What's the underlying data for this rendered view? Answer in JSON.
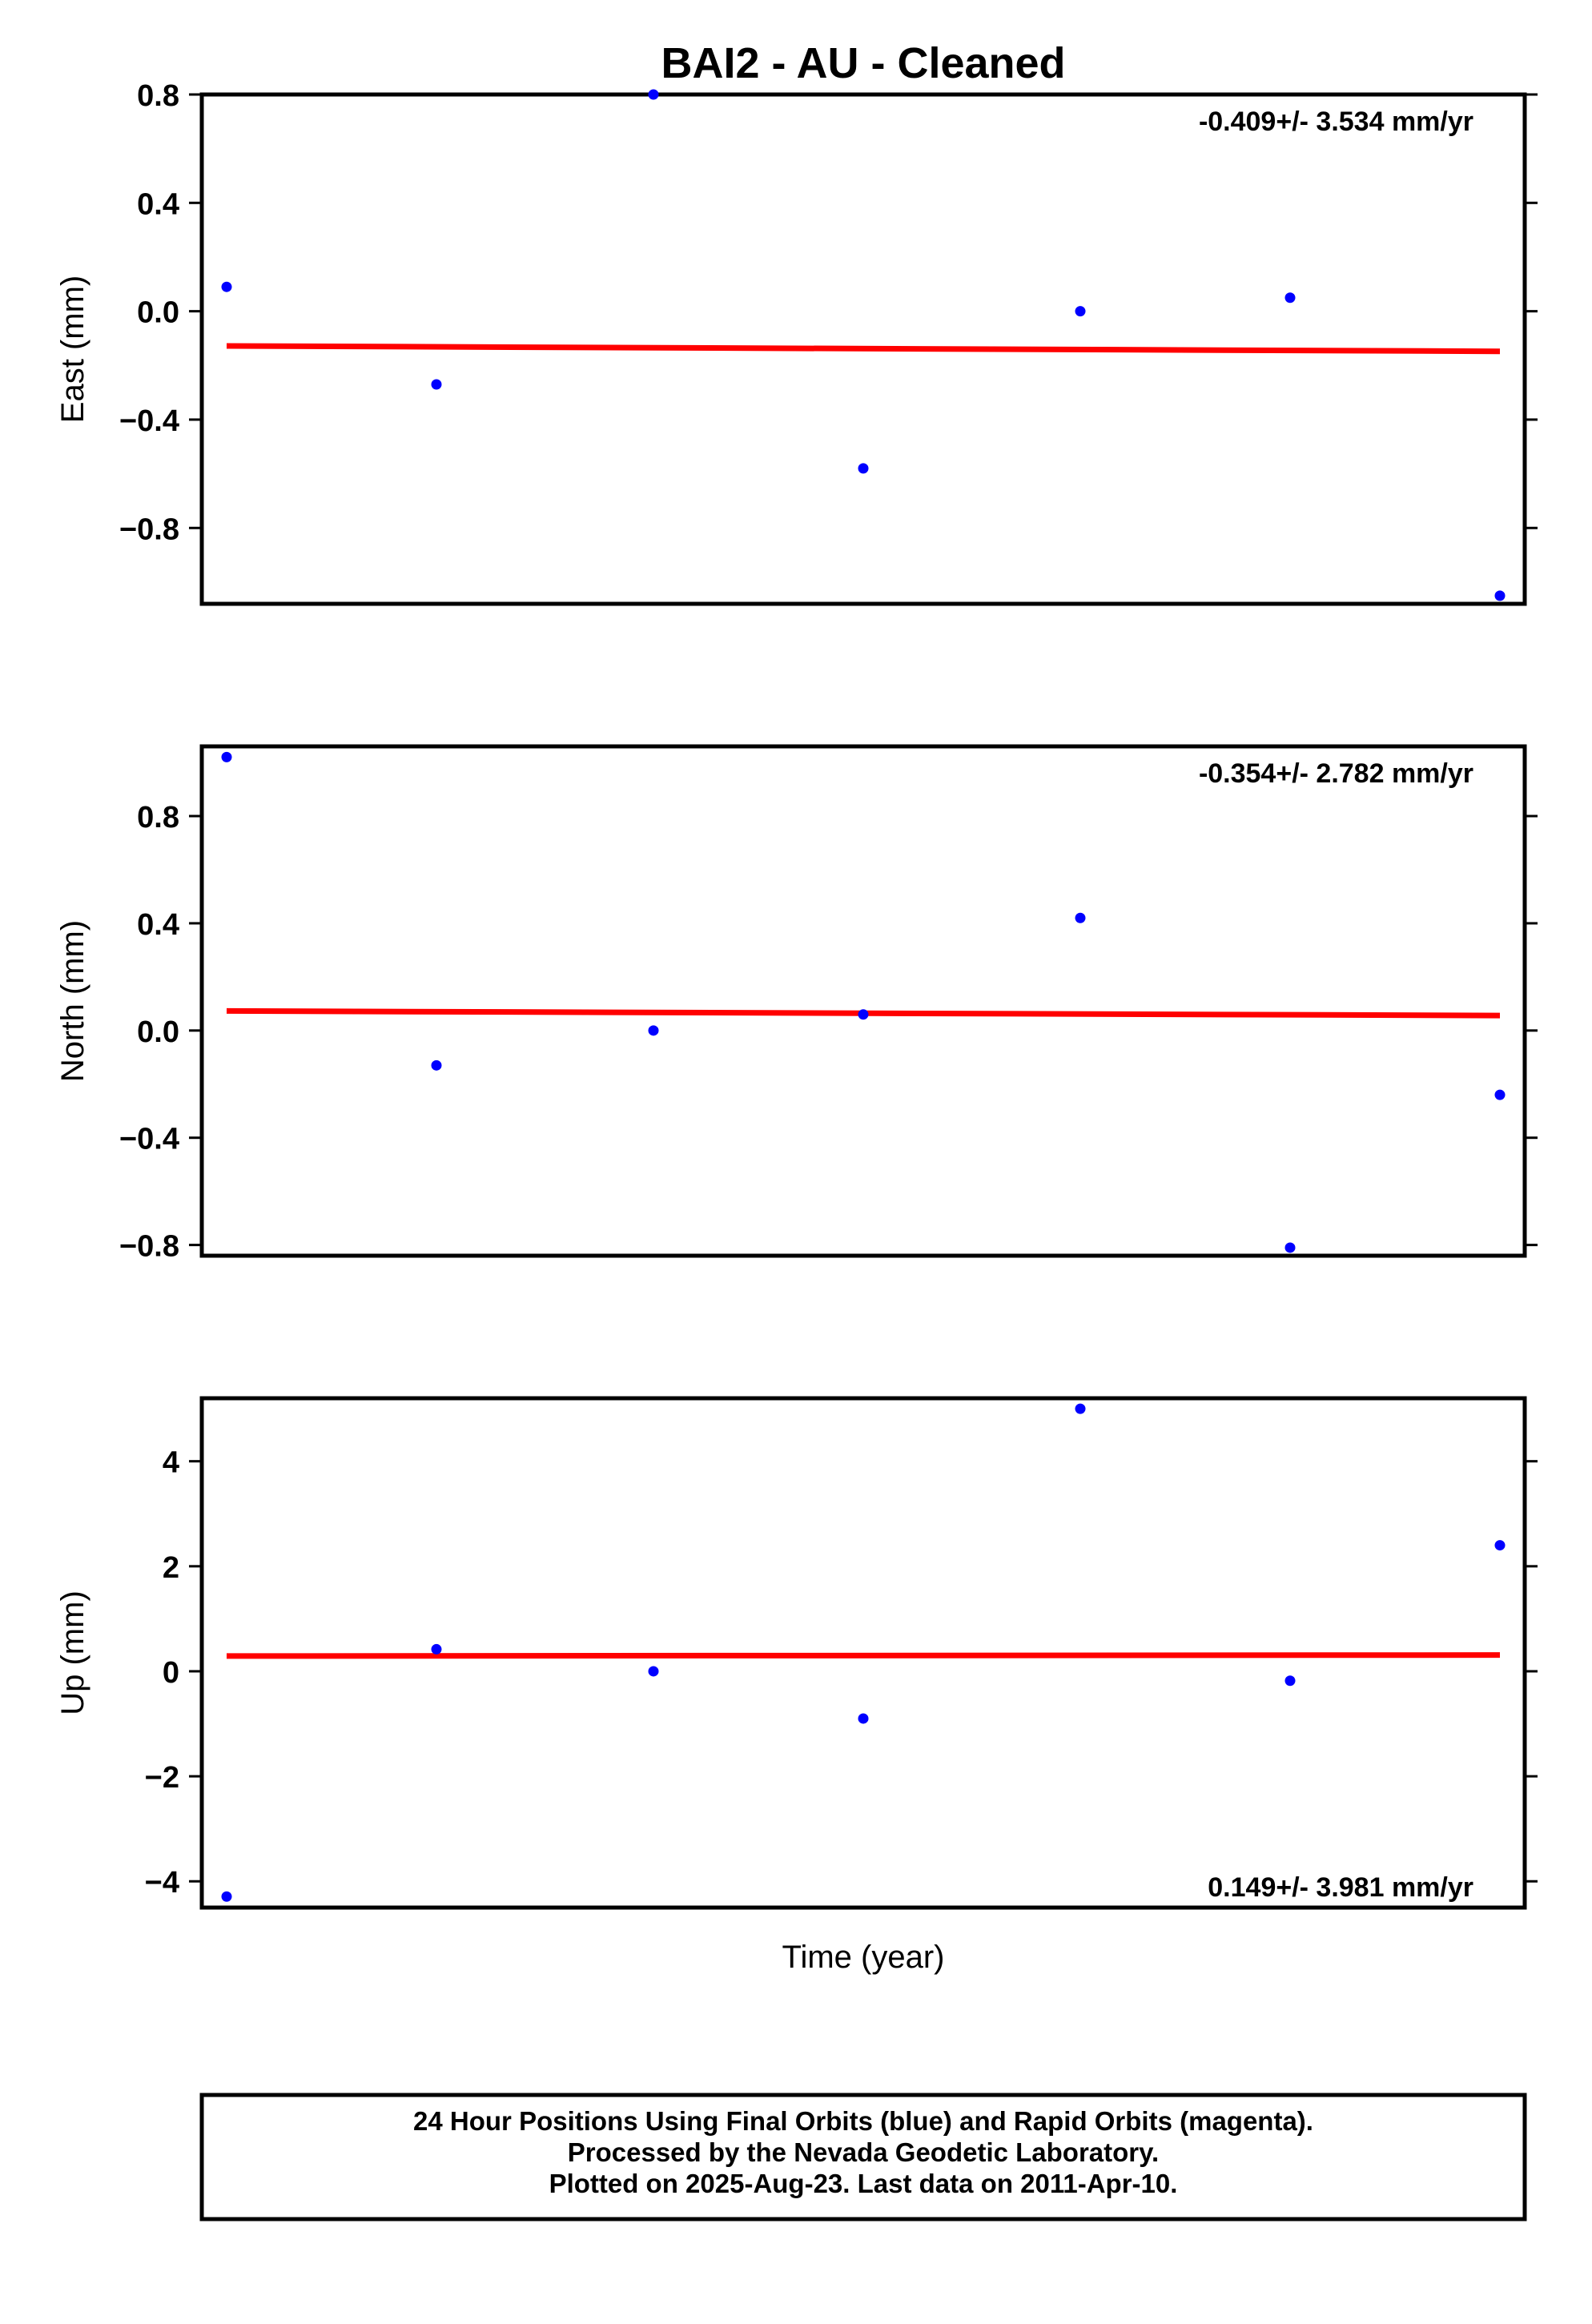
{
  "title": "BAI2  - AU - Cleaned",
  "xlabel": "Time (year)",
  "footer": [
    "24 Hour Positions Using Final Orbits (blue) and Rapid Orbits (magenta).",
    "Processed by the Nevada Geodetic Laboratory.",
    "Plotted on 2025-Aug-23. Last data on 2011-Apr-10."
  ],
  "colors": {
    "points": "#0000ff",
    "fit": "#ff0000",
    "axes": "#000000"
  },
  "chart_data": [
    {
      "type": "scatter",
      "ylabel": "East (mm)",
      "ylim": [
        -1.08,
        0.8
      ],
      "yticks": [
        0.8,
        0.4,
        0.0,
        -0.4,
        -0.8
      ],
      "ytick_labels": [
        "0.8",
        "0.4",
        "0.0",
        "−0.4",
        "−0.8"
      ],
      "rate": "-0.409+/- 3.534 mm/yr",
      "rate_position": "top-right",
      "points": [
        0.09,
        -0.27,
        0.8,
        -0.58,
        0.0,
        0.05,
        -1.05
      ],
      "fit": [
        -0.128,
        -0.148
      ]
    },
    {
      "type": "scatter",
      "ylabel": "North (mm)",
      "ylim": [
        -0.84,
        1.06
      ],
      "yticks": [
        0.8,
        0.4,
        0.0,
        -0.4,
        -0.8
      ],
      "ytick_labels": [
        "0.8",
        "0.4",
        "0.0",
        "−0.4",
        "−0.8"
      ],
      "rate": "-0.354+/- 2.782 mm/yr",
      "rate_position": "top-right",
      "points": [
        1.02,
        -0.13,
        0.0,
        0.06,
        0.42,
        -0.81,
        -0.24
      ],
      "fit": [
        0.073,
        0.056
      ]
    },
    {
      "type": "scatter",
      "ylabel": "Up (mm)",
      "ylim": [
        -4.5,
        5.2
      ],
      "yticks": [
        4,
        2,
        0,
        -2,
        -4
      ],
      "ytick_labels": [
        "4",
        "2",
        "0",
        "−2",
        "−4"
      ],
      "rate": "0.149+/- 3.981 mm/yr",
      "rate_position": "bottom-right",
      "points": [
        -4.29,
        0.42,
        0.0,
        -0.9,
        5.0,
        -0.18,
        2.4
      ],
      "fit": [
        0.29,
        0.31
      ]
    }
  ]
}
